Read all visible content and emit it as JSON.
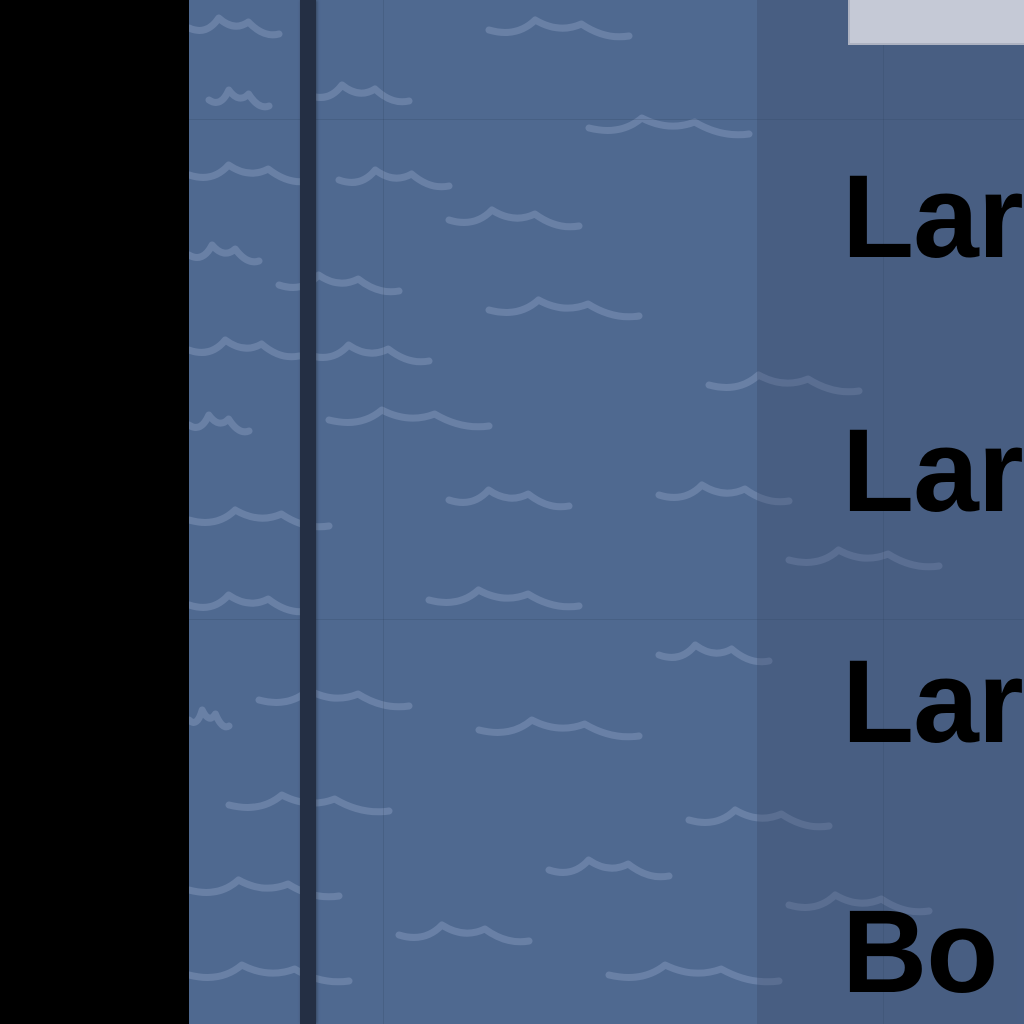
{
  "background": {
    "letterbox_color": "#000000",
    "sea_color": "#4f6990",
    "wave_color": "#7288ad",
    "border_color": "#242f44"
  },
  "panel": {
    "header_color": "#c5c9d6",
    "overlay_color": "#37466480",
    "menu": [
      {
        "label": "Lar"
      },
      {
        "label": "Lar"
      },
      {
        "label": "Lar"
      },
      {
        "label": "Bo"
      }
    ]
  }
}
